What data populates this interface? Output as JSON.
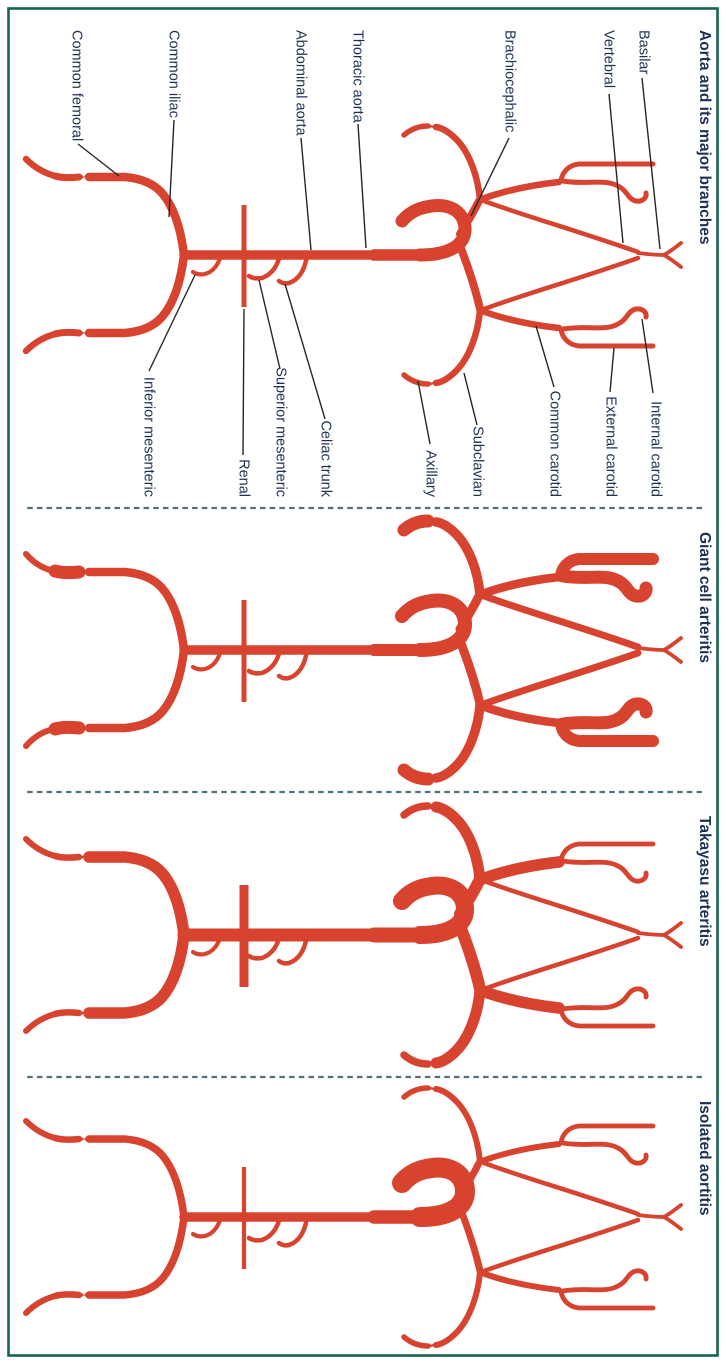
{
  "colors": {
    "artery": "#D8432F",
    "text": "#1D3154",
    "border": "#156350",
    "separator": "#54707E",
    "leader": "#262626"
  },
  "panels": [
    {
      "key": "aorta_reference",
      "title": "Aorta and its major branches",
      "vessel_widths": {
        "arch": 13,
        "aorta_taper": 11.5,
        "aorta": 9.5,
        "trunk": 8,
        "subclavian": 6.5,
        "axillary": 5.5,
        "common_carotid": 6.5,
        "external_carotid": 5,
        "internal_carotid": 5,
        "vertebral": 4.5,
        "basilar": 3.8,
        "celiac": 4.5,
        "sma": 4.5,
        "ima": 4.2,
        "renal": 5,
        "iliac": 8.5,
        "femoral_stub": 7,
        "femoral_tail": 6.5
      }
    },
    {
      "key": "giant_cell_arteritis",
      "title": "Giant cell arteritis",
      "vessel_widths": {
        "arch": 14,
        "aorta_taper": 12,
        "aorta": 9.5,
        "trunk": 9,
        "subclavian": 9.5,
        "axillary": 13,
        "common_carotid": 8.5,
        "external_carotid": 12,
        "internal_carotid": 13,
        "vertebral": 7,
        "basilar": 3.8,
        "celiac": 4.5,
        "sma": 4.5,
        "ima": 4.2,
        "renal": 5,
        "iliac": 8.5,
        "femoral_stub": 13,
        "femoral_tail": 6
      }
    },
    {
      "key": "takayasu_arteritis",
      "title": "Takayasu arteritis",
      "vessel_widths": {
        "arch": 18,
        "aorta_taper": 15,
        "aorta": 13,
        "trunk": 12,
        "subclavian": 11,
        "axillary": 7.5,
        "common_carotid": 11.5,
        "external_carotid": 4.8,
        "internal_carotid": 4.8,
        "vertebral": 4.5,
        "basilar": 3.8,
        "celiac": 4.5,
        "sma": 4.5,
        "ima": 4.2,
        "renal": 9,
        "iliac": 11.5,
        "femoral_stub": 6.5,
        "femoral_tail": 6
      }
    },
    {
      "key": "isolated_aortitis",
      "title": "Isolated aortitis",
      "vessel_widths": {
        "arch": 20,
        "aorta_taper": 13.5,
        "aorta": 9.5,
        "trunk": 7,
        "subclavian": 6,
        "axillary": 5.5,
        "common_carotid": 6,
        "external_carotid": 4.8,
        "internal_carotid": 4.8,
        "vertebral": 4.5,
        "basilar": 3.8,
        "celiac": 4.5,
        "sma": 4.5,
        "ima": 4.2,
        "renal": 4.2,
        "iliac": 7.5,
        "femoral_stub": 6.5,
        "femoral_tail": 6
      }
    }
  ],
  "labels": {
    "basilar": "Basilar",
    "vertebral": "Vertebral",
    "internal_carotid": "Internal carotid",
    "external_carotid": "External carotid",
    "common_carotid": "Common carotid",
    "brachiocephalic": "Brachiocephalic",
    "subclavian": "Subclavian",
    "axillary": "Axillary",
    "thoracic_aorta": "Thoracic aorta",
    "abdominal_aorta": "Abdominal aorta",
    "celiac_trunk": "Celiac trunk",
    "superior_mesenteric": "Superior mesenteric",
    "renal": "Renal",
    "inferior_mesenteric": "Inferior mesenteric",
    "common_iliac": "Common iliac",
    "common_femoral": "Common femoral"
  }
}
